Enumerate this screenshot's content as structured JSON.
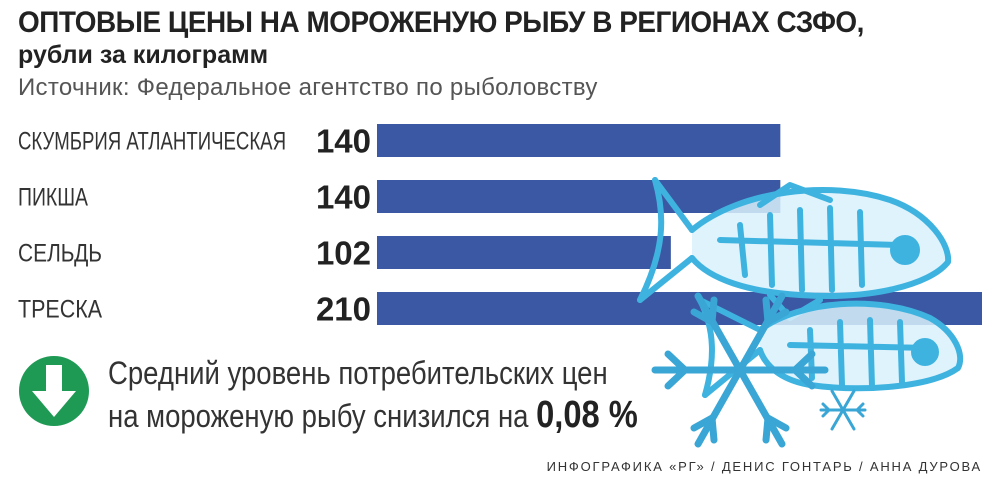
{
  "header": {
    "title": "ОПТОВЫЕ ЦЕНЫ НА МОРОЖЕНУЮ РЫБУ В РЕГИОНАХ СЗФО,",
    "subtitle": "рубли за килограмм",
    "source": "Источник: Федеральное агентство по рыболовству"
  },
  "chart_data": {
    "type": "bar",
    "orientation": "horizontal",
    "title": "ОПТОВЫЕ ЦЕНЫ НА МОРОЖЕНУЮ РЫБУ В РЕГИОНАХ СЗФО,",
    "subtitle": "рубли за килограмм",
    "categories": [
      "СКУМБРИЯ АТЛАНТИЧЕСКАЯ",
      "ПИКША",
      "СЕЛЬДЬ",
      "ТРЕСКА"
    ],
    "values": [
      140,
      140,
      102,
      210
    ],
    "data_labels": [
      "140",
      "140",
      "102",
      "210"
    ],
    "xlim": [
      0,
      210
    ],
    "grid": false,
    "bar_color": "#3b58a4"
  },
  "summary": {
    "icon": "down-arrow-icon",
    "icon_color": "#1f9a55",
    "line1": "Средний уровень потребительских цен",
    "line2": "на мороженую рыбу снизился на",
    "value": "0,08 %"
  },
  "credit": "ИНФОГРАФИКА «РГ» / ДЕНИС ГОНТАРЬ / АННА ДУРОВА",
  "decoration": {
    "fish_color": "#3fb3e0",
    "snowflake_color": "#3aa6d6"
  }
}
